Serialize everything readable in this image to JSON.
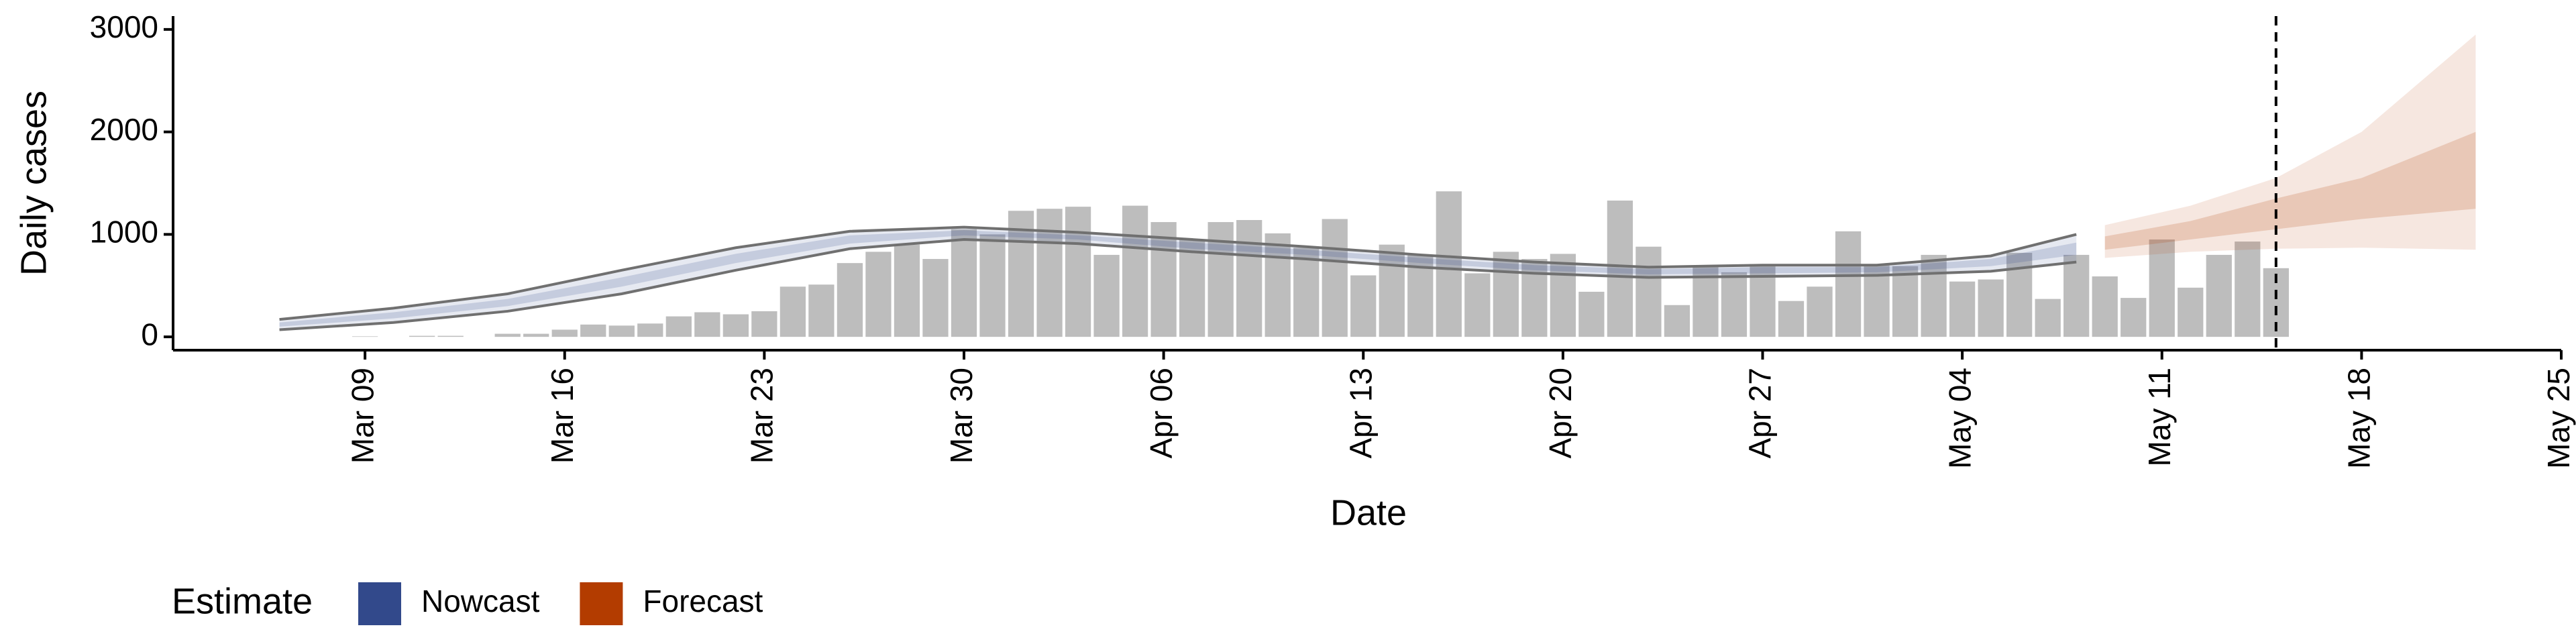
{
  "chart_data": {
    "type": "bar",
    "x_label": "Date",
    "y_label": "Daily cases",
    "xlim": [
      "Mar 03",
      "May 25"
    ],
    "xticks": [
      "Mar 09",
      "Mar 16",
      "Mar 23",
      "Mar 30",
      "Apr 06",
      "Apr 13",
      "Apr 20",
      "Apr 27",
      "May 04",
      "May 11",
      "May 18",
      "May 25"
    ],
    "ylim": [
      -130,
      3130
    ],
    "yticks": [
      0,
      1000,
      2000,
      3000
    ],
    "grid": false,
    "vline": "May 15",
    "bars": {
      "color": "#bdbdbd",
      "x": [
        "Mar 09",
        "Mar 10",
        "Mar 11",
        "Mar 12",
        "Mar 13",
        "Mar 14",
        "Mar 15",
        "Mar 16",
        "Mar 17",
        "Mar 18",
        "Mar 19",
        "Mar 20",
        "Mar 21",
        "Mar 22",
        "Mar 23",
        "Mar 24",
        "Mar 25",
        "Mar 26",
        "Mar 27",
        "Mar 28",
        "Mar 29",
        "Mar 30",
        "Mar 31",
        "Apr 01",
        "Apr 02",
        "Apr 03",
        "Apr 04",
        "Apr 05",
        "Apr 06",
        "Apr 07",
        "Apr 08",
        "Apr 09",
        "Apr 10",
        "Apr 11",
        "Apr 12",
        "Apr 13",
        "Apr 14",
        "Apr 15",
        "Apr 16",
        "Apr 17",
        "Apr 18",
        "Apr 19",
        "Apr 20",
        "Apr 21",
        "Apr 22",
        "Apr 23",
        "Apr 24",
        "Apr 25",
        "Apr 26",
        "Apr 27",
        "Apr 28",
        "Apr 29",
        "Apr 30",
        "May 01",
        "May 02",
        "May 03",
        "May 04",
        "May 05",
        "May 06",
        "May 07",
        "May 08",
        "May 09",
        "May 10",
        "May 11",
        "May 12",
        "May 13",
        "May 14",
        "May 15"
      ],
      "values": [
        5,
        0,
        10,
        10,
        0,
        30,
        30,
        70,
        120,
        110,
        130,
        200,
        240,
        220,
        250,
        490,
        510,
        720,
        830,
        900,
        760,
        1050,
        1000,
        1230,
        1250,
        1270,
        800,
        1280,
        1120,
        950,
        1120,
        1140,
        1010,
        870,
        1150,
        600,
        900,
        800,
        1420,
        620,
        830,
        760,
        810,
        440,
        1330,
        880,
        310,
        690,
        630,
        710,
        350,
        490,
        1030,
        700,
        690,
        800,
        540,
        560,
        820,
        370,
        800,
        590,
        380,
        950,
        480,
        800,
        930,
        670
      ]
    },
    "series": [
      {
        "name": "Nowcast",
        "color": "#32498b",
        "line_color": "#707070",
        "x": [
          "Mar 06",
          "Mar 10",
          "Mar 14",
          "Mar 18",
          "Mar 22",
          "Mar 26",
          "Mar 30",
          "Apr 03",
          "Apr 07",
          "Apr 11",
          "Apr 15",
          "Apr 19",
          "Apr 23",
          "Apr 27",
          "May 01",
          "May 05",
          "May 08"
        ],
        "lower_90": [
          70,
          140,
          250,
          420,
          650,
          860,
          950,
          910,
          830,
          760,
          680,
          620,
          580,
          590,
          600,
          640,
          730
        ],
        "upper_90": [
          170,
          280,
          420,
          650,
          870,
          1030,
          1070,
          1020,
          950,
          880,
          800,
          730,
          680,
          700,
          700,
          790,
          1000
        ],
        "lower_50": [
          100,
          180,
          300,
          490,
          720,
          910,
          990,
          950,
          860,
          800,
          720,
          650,
          610,
          620,
          630,
          690,
          800
        ],
        "upper_50": [
          140,
          240,
          370,
          580,
          810,
          990,
          1040,
          990,
          920,
          850,
          770,
          700,
          660,
          680,
          680,
          760,
          920
        ]
      },
      {
        "name": "Forecast",
        "color": "#b33c00",
        "x": [
          "May 09",
          "May 12",
          "May 15",
          "May 18",
          "May 22"
        ],
        "lower_90": [
          770,
          830,
          860,
          870,
          850
        ],
        "upper_90": [
          1090,
          1280,
          1550,
          2000,
          2950
        ],
        "lower_50": [
          850,
          950,
          1050,
          1150,
          1250
        ],
        "upper_50": [
          980,
          1130,
          1350,
          1550,
          2000
        ]
      }
    ],
    "legend": {
      "title": "Estimate",
      "position": "bottom"
    }
  }
}
